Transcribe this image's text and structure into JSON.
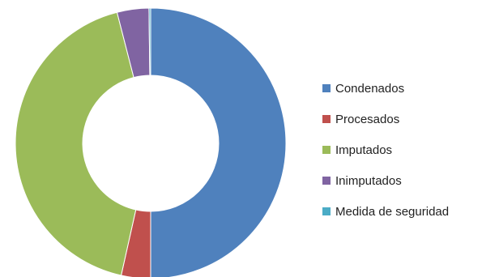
{
  "chart_data": {
    "type": "pie",
    "title": "",
    "donut": true,
    "legend_position": "right",
    "categories": [
      "Condenados",
      "Procesados",
      "Imputados",
      "Inimputados",
      "Medida de seguridad"
    ],
    "values": [
      50.0,
      3.5,
      42.5,
      3.8,
      0.2
    ],
    "colors": [
      "#4F81BD",
      "#C0504D",
      "#9BBB59",
      "#8064A2",
      "#4BACC6"
    ]
  }
}
